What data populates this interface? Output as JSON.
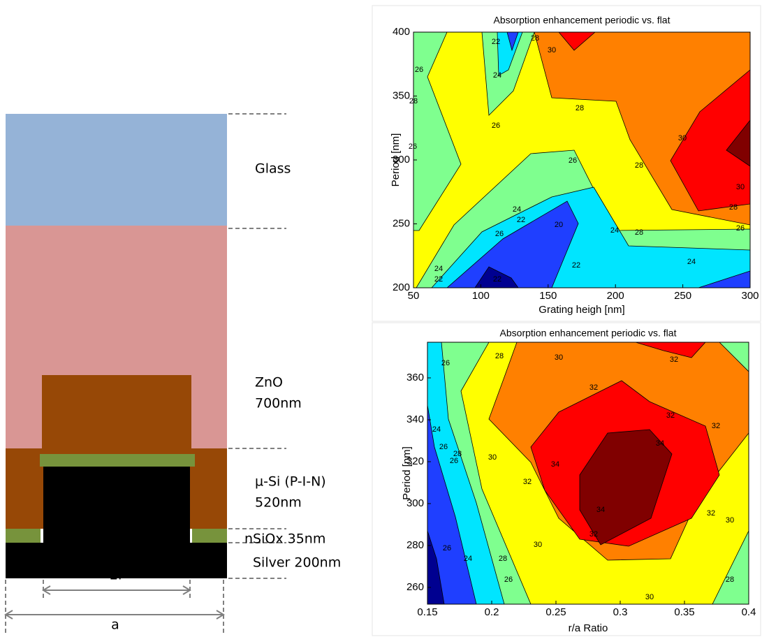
{
  "diagram": {
    "layers": [
      "Glass",
      "ZnO",
      "700nm",
      "µ-Si (P-I-N)",
      "520nm",
      "nSiOx 35nm",
      "Silver 200nm"
    ],
    "dimensions": [
      "2r",
      "a"
    ]
  },
  "chart_data": [
    {
      "type": "contour",
      "title": "Absorption enhancement periodic vs. flat",
      "xlabel": "Grating heigh [nm]",
      "ylabel": "Period [nm]",
      "xlim": [
        50,
        300
      ],
      "ylim": [
        200,
        400
      ],
      "xticks": [
        50,
        100,
        150,
        200,
        250,
        300
      ],
      "yticks": [
        200,
        250,
        300,
        350,
        400
      ],
      "levels": [
        20,
        22,
        24,
        26,
        28,
        30,
        32
      ],
      "colors": [
        "#1f3fff",
        "#00e5ff",
        "#7fff8f",
        "#ffff00",
        "#ff8000",
        "#ff0000",
        "#800000"
      ],
      "below_color": "#000090",
      "contour_labels": [
        28,
        30,
        26,
        22,
        24,
        28,
        26,
        26,
        28,
        30,
        28,
        30,
        28,
        26,
        26,
        24,
        22,
        20,
        26,
        24,
        22,
        22,
        22,
        24,
        28,
        24
      ]
    },
    {
      "type": "contour",
      "title": "Absorption enhancement periodic vs. flat",
      "xlabel": "r/a Ratio",
      "ylabel": "Period [nm]",
      "xlim": [
        0.15,
        0.4
      ],
      "ylim": [
        252,
        377
      ],
      "xticks": [
        0.15,
        0.2,
        0.25,
        0.3,
        0.35,
        0.4
      ],
      "yticks": [
        260,
        280,
        300,
        320,
        340,
        360
      ],
      "levels": [
        22,
        24,
        26,
        28,
        30,
        32,
        34
      ],
      "colors": [
        "#1f3fff",
        "#00e5ff",
        "#7fff8f",
        "#ffff00",
        "#ff8000",
        "#ff0000",
        "#800000"
      ],
      "below_color": "#000090",
      "contour_labels": [
        26,
        28,
        30,
        32,
        24,
        26,
        26,
        28,
        30,
        32,
        32,
        32,
        32,
        34,
        34,
        34,
        32,
        30,
        32,
        30,
        26,
        24,
        28,
        26,
        30,
        28
      ]
    }
  ]
}
